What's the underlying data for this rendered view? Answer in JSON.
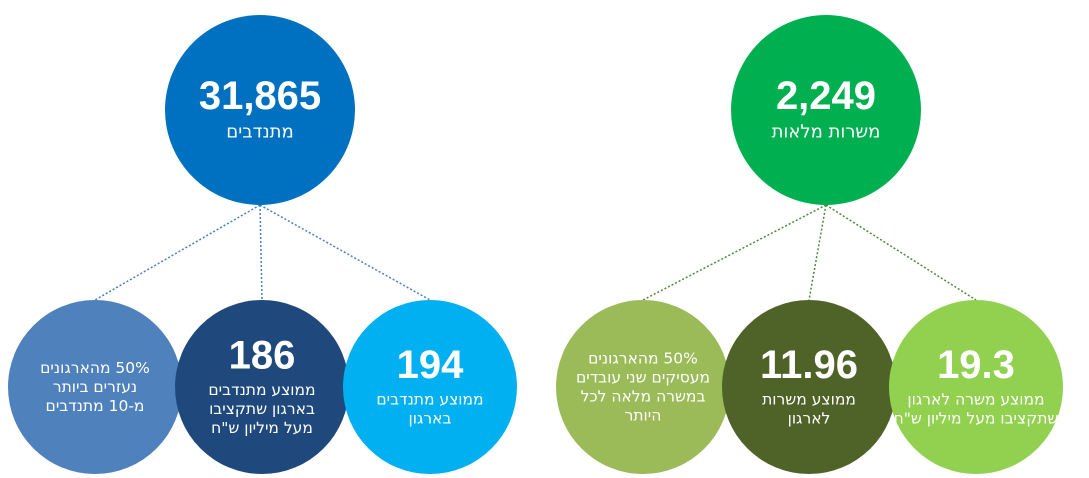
{
  "groups": [
    {
      "main": {
        "number": "31,865",
        "label": [
          "מתנדבים"
        ]
      },
      "children": [
        {
          "label": [
            "50% מהארגונים",
            "נעזרים ביותר",
            "מ-10 מתנדבים"
          ]
        },
        {
          "number": "186",
          "label": [
            "ממוצע מתנדבים",
            "בארגון שתקציבו",
            "מעל מיליון ש\"ח"
          ]
        },
        {
          "number": "194",
          "label": [
            "ממוצע מתנדבים",
            "בארגון"
          ]
        }
      ]
    },
    {
      "main": {
        "number": "2,249",
        "label": [
          "משרות מלאות"
        ]
      },
      "children": [
        {
          "label": [
            "50% מהארגונים",
            "מעסיקים שני עובדים",
            "במשרה מלאה לכל",
            "היותר"
          ]
        },
        {
          "number": "11.96",
          "label": [
            "ממוצע משרות",
            "לארגון"
          ]
        },
        {
          "number": "19.3",
          "label": [
            "ממוצע משרה לארגון",
            "שתקציבו מעל מיליון ש\"ח"
          ]
        }
      ]
    }
  ]
}
